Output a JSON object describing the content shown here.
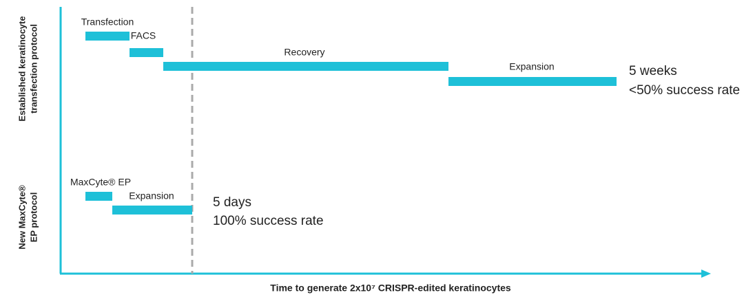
{
  "y_axis_labels": [
    {
      "lines": [
        "Established keratinocyte",
        "transfection protocol"
      ]
    },
    {
      "lines": [
        "New MaxCyte®",
        "EP protocol"
      ]
    }
  ],
  "x_axis_label": "Time to generate 2x10⁷ CRISPR-edited keratinocytes",
  "rows": [
    {
      "tasks": [
        "Transfection",
        "FACS",
        "Recovery",
        "Expansion"
      ],
      "summary": [
        "5 weeks",
        "<50% success rate"
      ]
    },
    {
      "tasks": [
        "MaxCyte® EP",
        "Expansion"
      ],
      "summary": [
        "5 days",
        "100% success rate"
      ]
    }
  ]
}
